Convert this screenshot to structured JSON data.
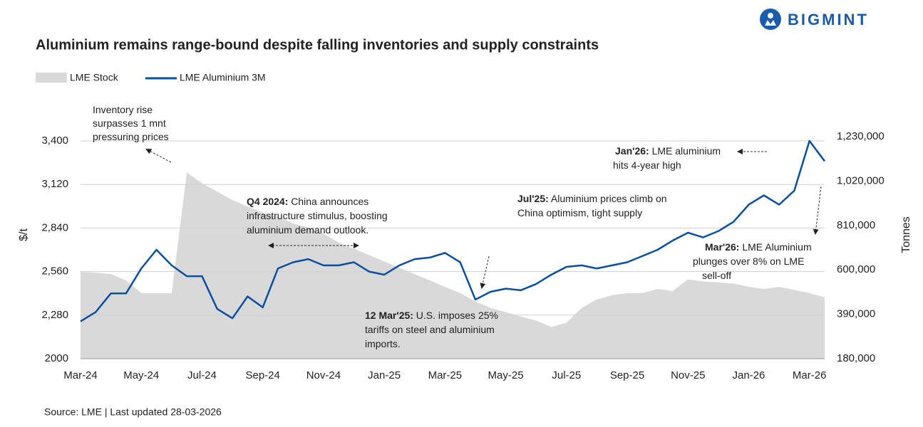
{
  "brand": "BIGMINT",
  "chart_data": {
    "type": "line",
    "title": "Aluminium remains range-bound despite falling inventories and supply constraints",
    "y_label": "$/t",
    "y2_label": "Tonnes",
    "source": "Source: LME  |  Last updated 28-03-2026",
    "categories": [
      "Mar-24",
      null,
      null,
      null,
      "May-24",
      null,
      null,
      null,
      "Jul-24",
      null,
      null,
      null,
      "Sep-24",
      null,
      null,
      null,
      "Nov-24",
      null,
      null,
      null,
      "Jan-25",
      null,
      null,
      null,
      "Mar-25",
      null,
      null,
      null,
      "May-25",
      null,
      null,
      null,
      "Jul-25",
      null,
      null,
      null,
      "Sep-25",
      null,
      null,
      null,
      "Nov-25",
      null,
      null,
      null,
      "Jan-26",
      null,
      null,
      null,
      "Mar-26",
      null
    ],
    "series": [
      {
        "name": "LME Stock",
        "color": "#d9d9d9",
        "axis": "y2",
        "values": [
          590000,
          587000,
          580000,
          550000,
          490000,
          490000,
          490000,
          1060000,
          1010000,
          970000,
          930000,
          900000,
          870000,
          850000,
          820000,
          800000,
          770000,
          730000,
          700000,
          670000,
          640000,
          610000,
          580000,
          550000,
          520000,
          490000,
          450000,
          420000,
          400000,
          380000,
          360000,
          330000,
          350000,
          420000,
          460000,
          480000,
          490000,
          490000,
          510000,
          500000,
          555000,
          545000,
          540000,
          535000,
          520000,
          510000,
          520000,
          505000,
          490000,
          470000
        ]
      },
      {
        "name": "LME Aluminium 3M",
        "color": "#0b4fa0",
        "values": [
          2240,
          2300,
          2420,
          2420,
          2580,
          2700,
          2600,
          2530,
          2530,
          2320,
          2260,
          2400,
          2330,
          2580,
          2620,
          2640,
          2600,
          2600,
          2620,
          2560,
          2540,
          2600,
          2640,
          2650,
          2680,
          2620,
          2380,
          2430,
          2450,
          2440,
          2480,
          2540,
          2590,
          2600,
          2580,
          2600,
          2620,
          2660,
          2700,
          2760,
          2810,
          2780,
          2820,
          2880,
          2990,
          3050,
          2990,
          3080,
          3400,
          3270
        ]
      }
    ],
    "ylim": [
      2000,
      3400
    ],
    "yticks": [
      2000,
      {
        "value": 2280,
        "label": "2,280"
      },
      {
        "value": 2560,
        "label": "2,560"
      },
      {
        "value": 2840,
        "label": "2,840"
      },
      {
        "value": 3120,
        "label": "3,120"
      },
      {
        "value": 3400,
        "label": "3,400"
      }
    ],
    "y2lim": [
      180000,
      1230000
    ],
    "y2ticks": [
      {
        "value": 180000,
        "label": "180,000"
      },
      {
        "value": 390000,
        "label": "390,000"
      },
      {
        "value": 600000,
        "label": "600,000"
      },
      {
        "value": 810000,
        "label": "810,000"
      },
      {
        "value": 1020000,
        "label": "1,020,000"
      },
      {
        "value": 1230000,
        "label": "1,230,000"
      }
    ],
    "grid": true,
    "annotations": [
      {
        "lines": [
          "Inventory rise",
          "surpasses 1 mnt",
          "pressuring prices"
        ]
      },
      {
        "bold": "Q4 2024:",
        "lines": [
          " China announces",
          "infrastructure stimulus, boosting",
          "aluminium demand outlook."
        ]
      },
      {
        "bold": "12 Mar'25:",
        "lines": [
          " U.S. imposes 25%",
          "tariffs on steel and aluminium",
          "imports."
        ]
      },
      {
        "bold": "Jul'25:",
        "lines": [
          " Aluminium prices climb on",
          "China optimism, tight supply"
        ]
      },
      {
        "bold": "Jan'26:",
        "lines": [
          " LME aluminium",
          "hits 4-year high"
        ]
      },
      {
        "bold": "Mar'26:",
        "lines": [
          " LME Aluminium",
          "plunges over 8% on LME",
          "sell-off"
        ]
      }
    ]
  }
}
